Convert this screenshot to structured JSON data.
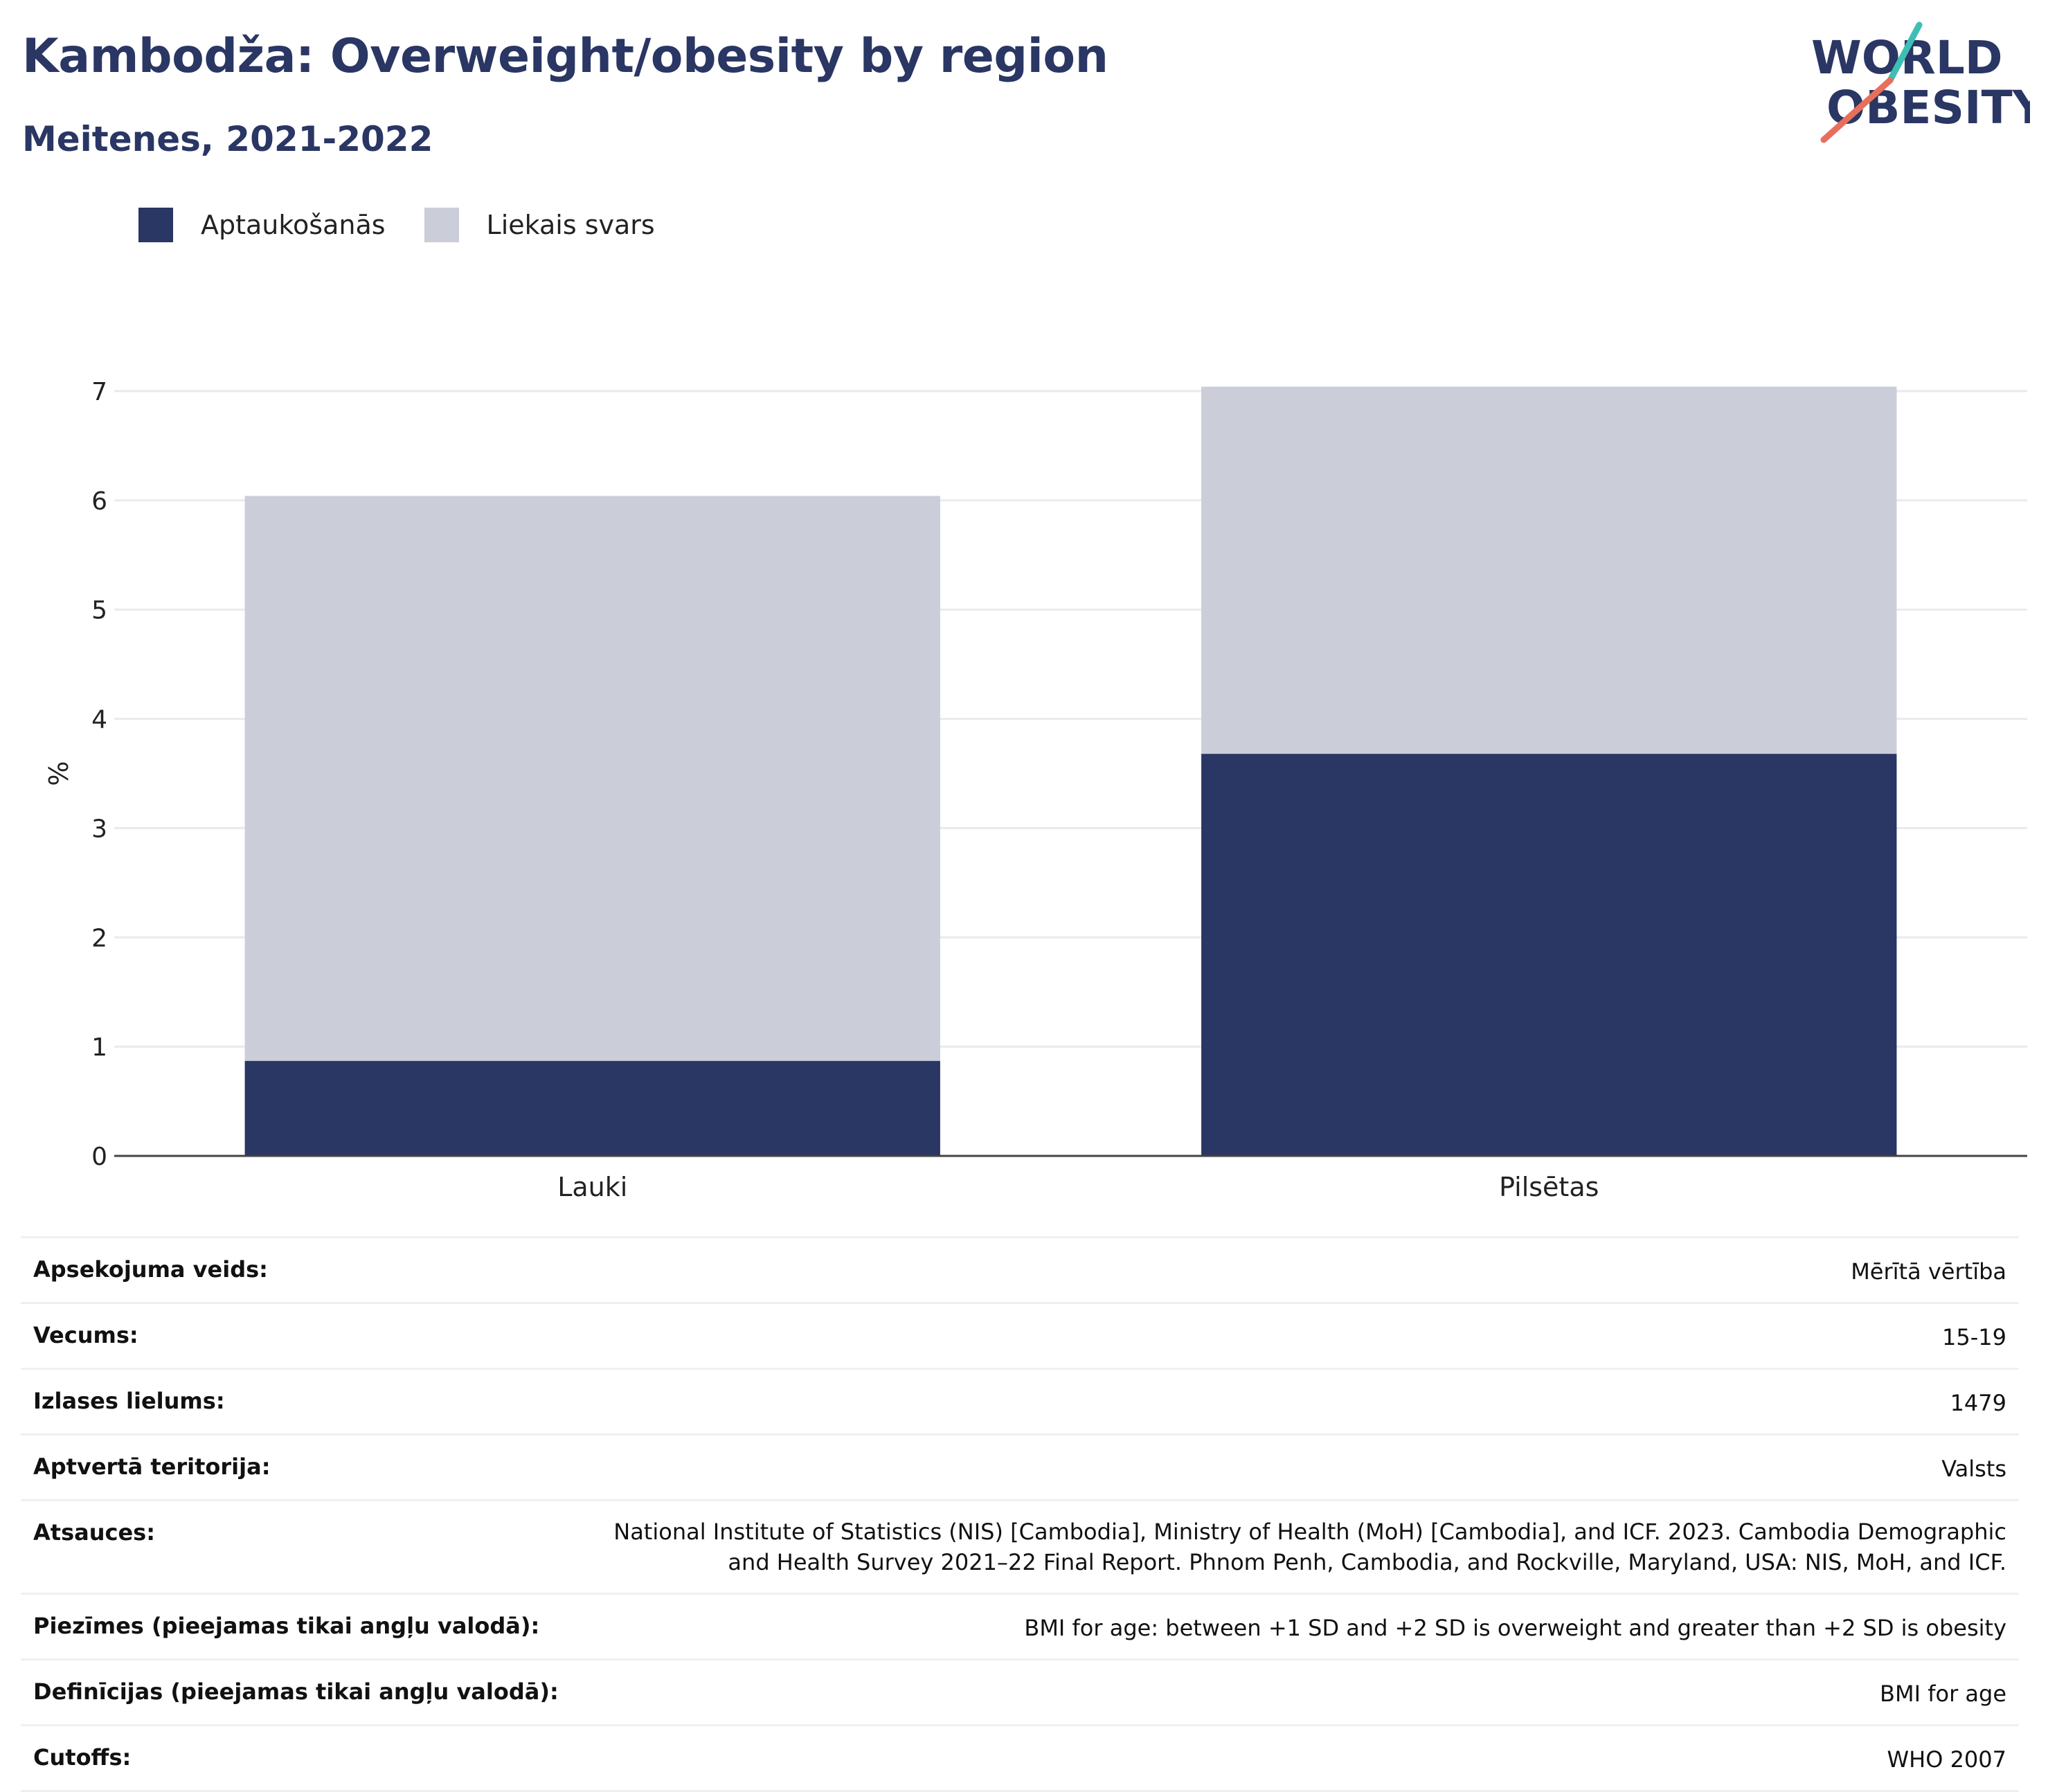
{
  "header": {
    "title": "Kambodža: Overweight/obesity by region",
    "subtitle": "Meitenes, 2021-2022",
    "logo_line1": "WORLD",
    "logo_line2": "OBESITY"
  },
  "legend": [
    {
      "label": "Aptaukošanās",
      "color": "#2a3663"
    },
    {
      "label": "Liekais svars",
      "color": "#cbcdd8"
    }
  ],
  "chart_data": {
    "type": "bar",
    "stacked": true,
    "categories": [
      "Lauki",
      "Pilsētas"
    ],
    "series": [
      {
        "name": "Aptaukošanās",
        "values": [
          0.87,
          3.68
        ],
        "color": "#2a3663"
      },
      {
        "name": "Liekais svars",
        "values": [
          5.17,
          3.36
        ],
        "color": "#cbcdd8"
      }
    ],
    "ylabel": "%",
    "ylim": [
      0,
      7
    ],
    "yticks": [
      0,
      1,
      2,
      3,
      4,
      5,
      6,
      7
    ],
    "grid": true,
    "legend_position": "top-left"
  },
  "info": [
    {
      "key": "Apsekojuma veids:",
      "value": "Mērītā vērtība"
    },
    {
      "key": "Vecums:",
      "value": "15-19"
    },
    {
      "key": "Izlases lielums:",
      "value": "1479"
    },
    {
      "key": "Aptvertā teritorija:",
      "value": "Valsts"
    },
    {
      "key": "Atsauces:",
      "value": "National Institute of Statistics (NIS) [Cambodia], Ministry of Health (MoH) [Cambodia], and ICF. 2023. Cambodia Demographic and Health Survey 2021–22 Final Report. Phnom Penh, Cambodia, and Rockville, Maryland, USA: NIS, MoH, and ICF."
    },
    {
      "key": "Piezīmes (pieejamas tikai angļu valodā):",
      "value": "BMI for age: between +1 SD and +2 SD is overweight and greater than +2 SD is obesity"
    },
    {
      "key": "Definīcijas (pieejamas tikai angļu valodā):",
      "value": "BMI for age"
    },
    {
      "key": "Cutoffs:",
      "value": "WHO 2007"
    }
  ]
}
